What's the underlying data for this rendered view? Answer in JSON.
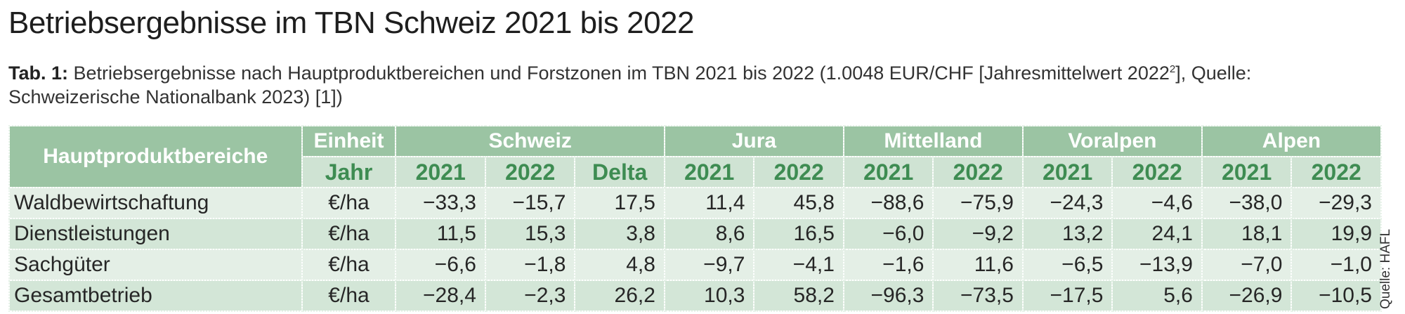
{
  "title": "Betriebsergebnisse im TBN Schweiz 2021 bis 2022",
  "caption": {
    "label": "Tab. 1:",
    "text_part1": " Betriebsergebnisse nach Hauptproduktbereichen und Forstzonen im TBN 2021 bis 2022 (1.0048 EUR/CHF [Jahresmittelwert 2022",
    "superscript": "2",
    "text_part2": "], Quelle: Schweizerische Nationalbank 2023) [1])"
  },
  "table": {
    "header": {
      "rowhead": "Hauptproduktbereiche",
      "unit_top": "Einheit",
      "unit_sub": "Jahr",
      "groups": [
        "Schweiz",
        "Jura",
        "Mittelland",
        "Voralpen",
        "Alpen"
      ],
      "sub": [
        "2021",
        "2022",
        "Delta",
        "2021",
        "2022",
        "2021",
        "2022",
        "2021",
        "2022",
        "2021",
        "2022"
      ]
    },
    "rows": [
      {
        "label": "Waldbewirtschaftung",
        "unit": "€/ha",
        "values": [
          "−33,3",
          "−15,7",
          "17,5",
          "11,4",
          "45,8",
          "−88,6",
          "−75,9",
          "−24,3",
          "−4,6",
          "−38,0",
          "−29,3"
        ]
      },
      {
        "label": "Dienstleistungen",
        "unit": "€/ha",
        "values": [
          "11,5",
          "15,3",
          "3,8",
          "8,6",
          "16,5",
          "−6,0",
          "−9,2",
          "13,2",
          "24,1",
          "18,1",
          "19,9"
        ]
      },
      {
        "label": "Sachgüter",
        "unit": "€/ha",
        "values": [
          "−6,6",
          "−1,8",
          "4,8",
          "−9,7",
          "−4,1",
          "−1,6",
          "11,6",
          "−6,5",
          "−13,9",
          "−7,0",
          "−1,0"
        ]
      },
      {
        "label": "Gesamtbetrieb",
        "unit": "€/ha",
        "values": [
          "−28,4",
          "−2,3",
          "26,2",
          "10,3",
          "58,2",
          "−96,3",
          "−73,5",
          "−17,5",
          "5,6",
          "−26,9",
          "−10,5"
        ]
      }
    ]
  },
  "source": "Quelle: HAFL"
}
